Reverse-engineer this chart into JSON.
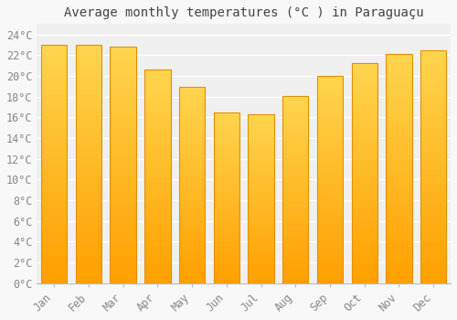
{
  "title": "Average monthly temperatures (°C ) in Paraguaçu",
  "months": [
    "Jan",
    "Feb",
    "Mar",
    "Apr",
    "May",
    "Jun",
    "Jul",
    "Aug",
    "Sep",
    "Oct",
    "Nov",
    "Dec"
  ],
  "values": [
    23.0,
    23.0,
    22.8,
    20.6,
    18.9,
    16.5,
    16.3,
    18.1,
    20.0,
    21.2,
    22.1,
    22.5
  ],
  "bar_color_top": "#FFD54F",
  "bar_color_bottom": "#FFA000",
  "bar_edge_color": "#E69000",
  "background_color": "#F8F8F8",
  "plot_bg_color": "#F0F0F0",
  "grid_color": "#FFFFFF",
  "text_color": "#888888",
  "title_color": "#444444",
  "ylim": [
    0,
    25
  ],
  "ytick_max": 24,
  "ytick_step": 2,
  "title_fontsize": 10,
  "tick_fontsize": 8.5,
  "bar_width": 0.75
}
